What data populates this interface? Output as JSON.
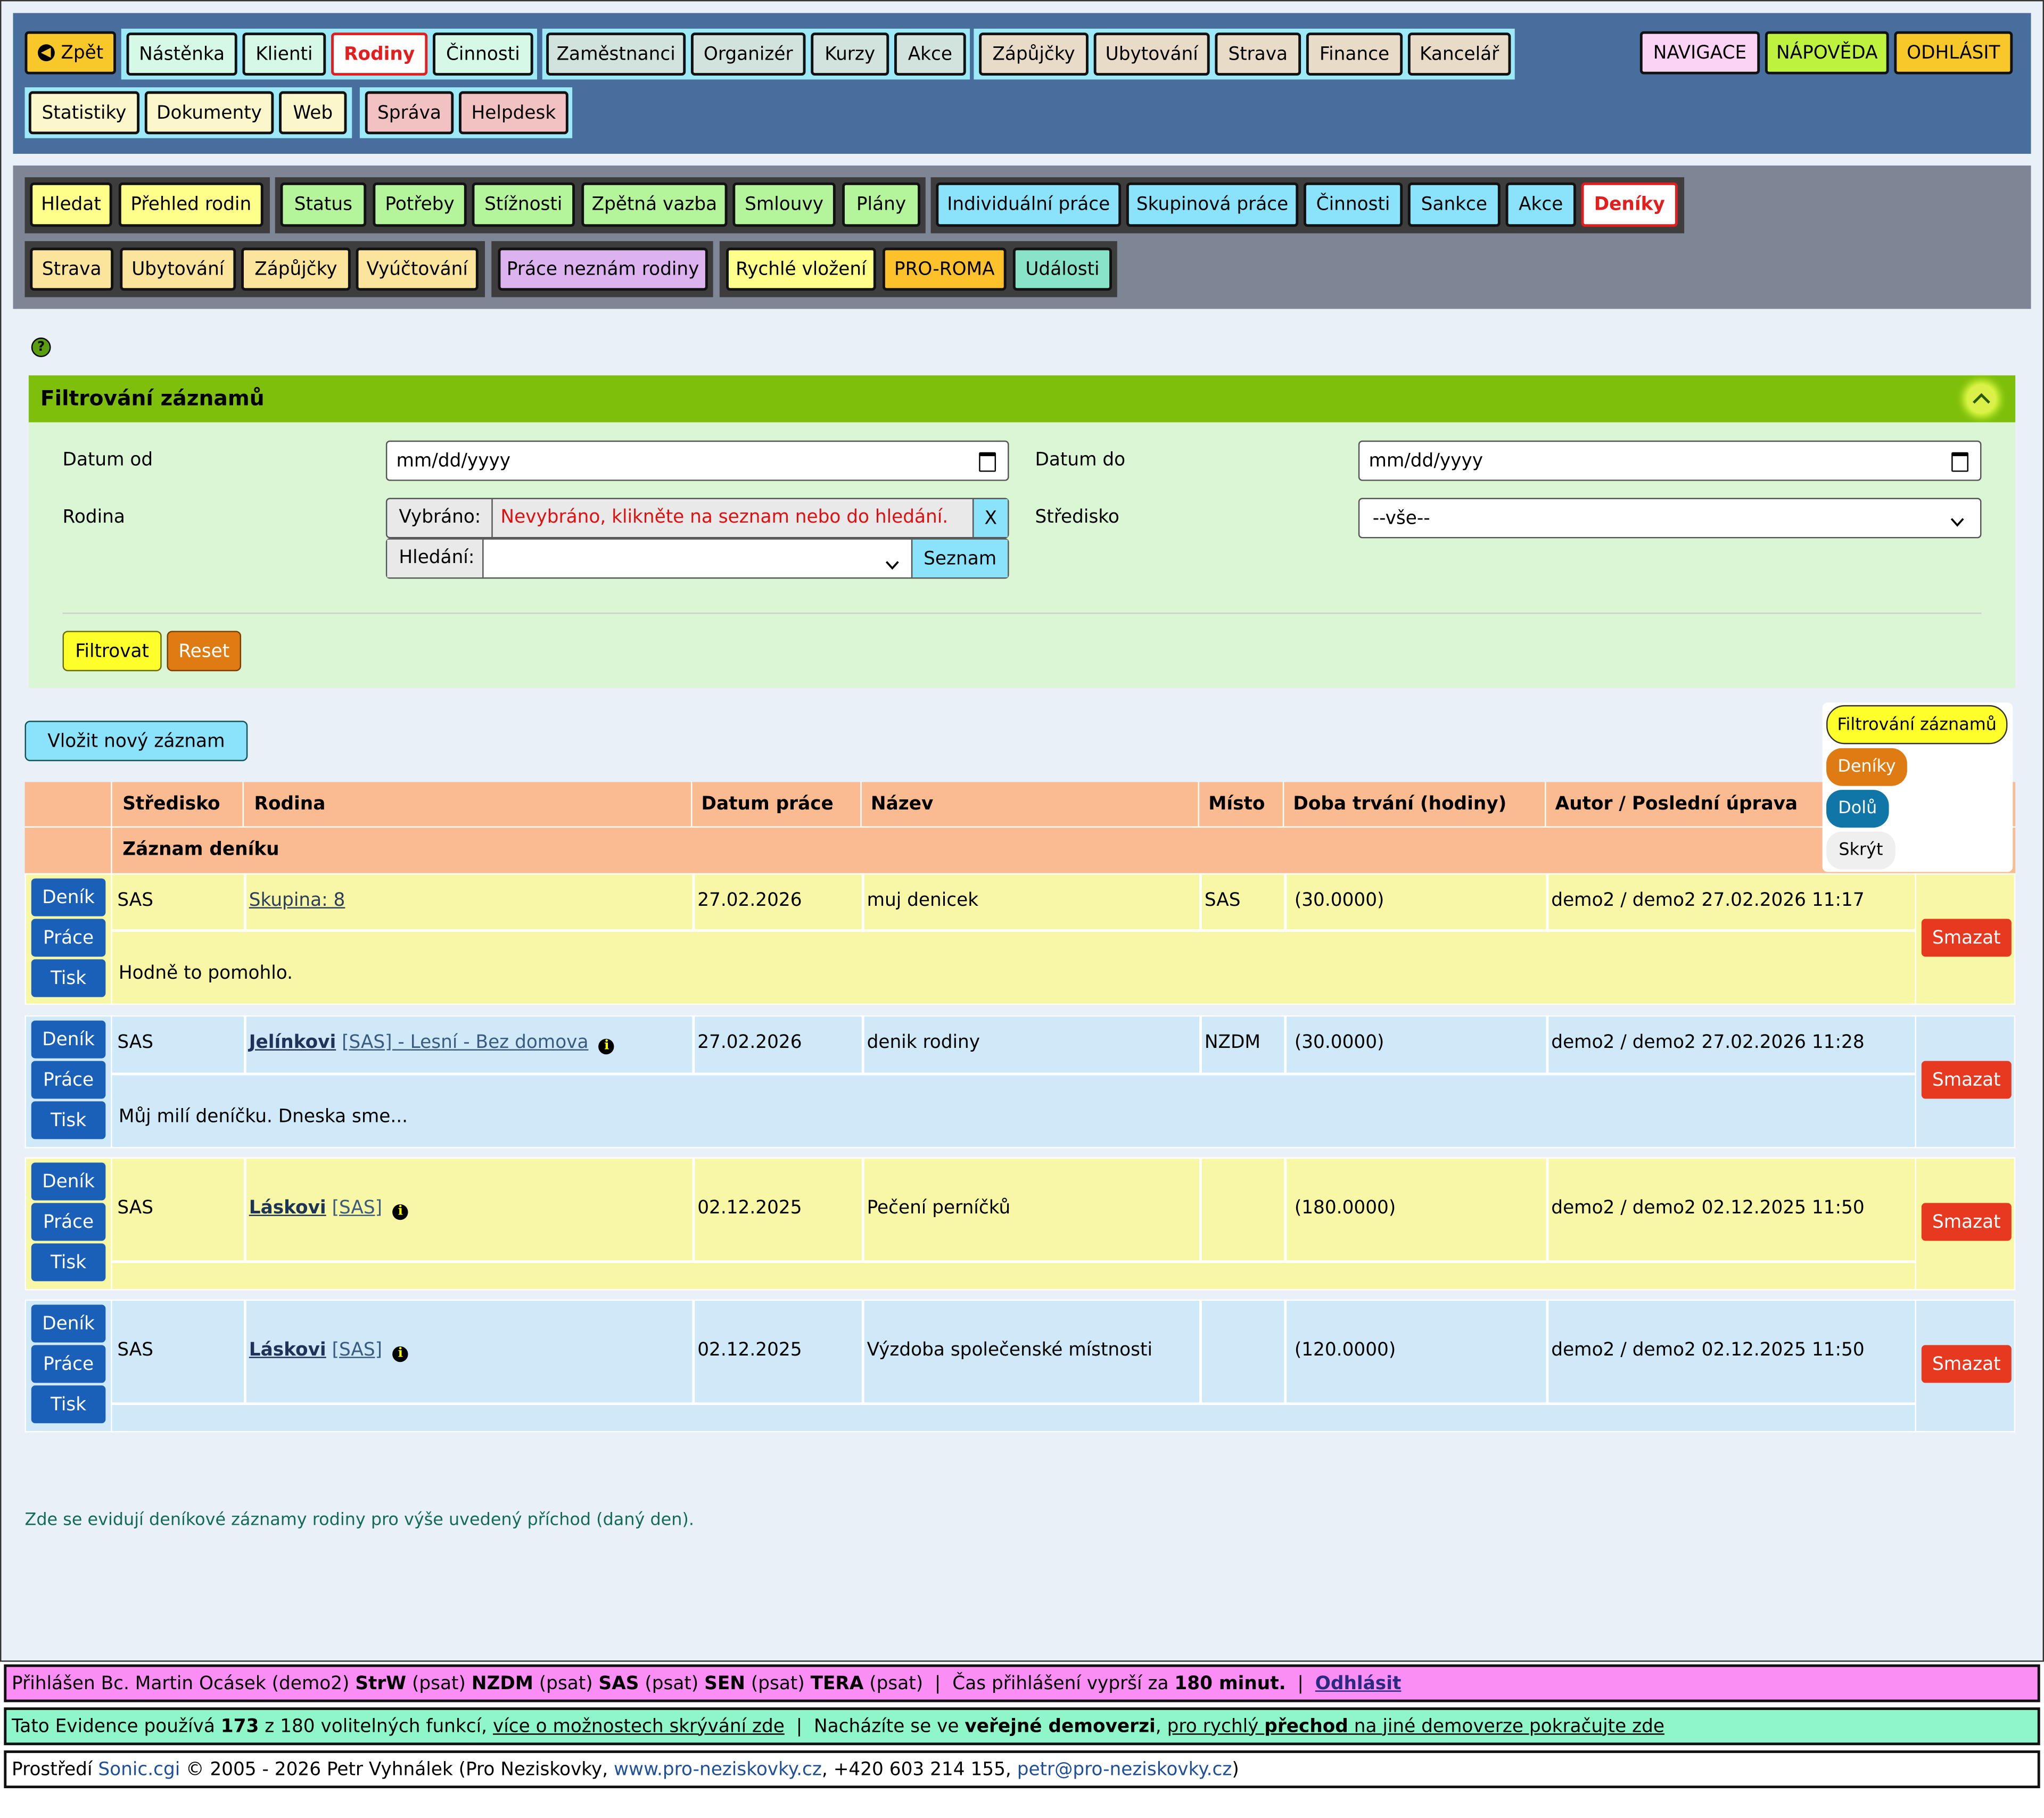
{
  "nav_main": {
    "back": "Zpět",
    "items": [
      "Nástěnka",
      "Klienti",
      "Rodiny",
      "Činnosti",
      "Zaměstnanci",
      "Organizér",
      "Kurzy",
      "Akce",
      "Zápůjčky",
      "Ubytování",
      "Strava",
      "Finance",
      "Kancelář"
    ],
    "row2": [
      "Statistiky",
      "Dokumenty",
      "Web",
      "Správa",
      "Helpdesk"
    ],
    "right": [
      "NAVIGACE",
      "NÁPOVĚDA",
      "ODHLÁSIT"
    ],
    "active": "Rodiny"
  },
  "nav_sub": {
    "row1": [
      "Hledat",
      "Přehled rodin",
      "Status",
      "Potřeby",
      "Stížnosti",
      "Zpětná vazba",
      "Smlouvy",
      "Plány",
      "Individuální práce",
      "Skupinová práce",
      "Činnosti",
      "Sankce",
      "Akce",
      "Deníky"
    ],
    "row2": [
      "Strava",
      "Ubytování",
      "Zápůjčky",
      "Vyúčtování",
      "Práce neznám rodiny",
      "Rychlé vložení",
      "PRO-ROMA",
      "Události"
    ],
    "active": "Deníky"
  },
  "filter": {
    "title": "Filtrování záznamů",
    "date_from_label": "Datum od",
    "date_from_value": "mm/dd/yyyy",
    "date_to_label": "Datum do",
    "date_to_value": "mm/dd/yyyy",
    "family_label": "Rodina",
    "selected_label": "Vybráno:",
    "selected_value": "Nevybráno, klikněte na seznam nebo do hledání.",
    "clear": "X",
    "search_label": "Hledání:",
    "list_button": "Seznam",
    "center_label": "Středisko",
    "center_value": "--vše--",
    "filter_button": "Filtrovat",
    "reset_button": "Reset"
  },
  "insert_button": "Vložit nový záznam",
  "floating_menu": [
    "Filtrování záznamů",
    "Deníky",
    "Dolů",
    "Skrýt"
  ],
  "table": {
    "headers": [
      "Středisko",
      "Rodina",
      "Datum práce",
      "Název",
      "Místo",
      "Doba trvání (hodiny)",
      "Autor / Poslední úprava"
    ],
    "subheader": "Záznam deníku",
    "row_buttons": [
      "Deník",
      "Práce",
      "Tisk"
    ],
    "delete": "Smazat",
    "rows": [
      {
        "center": "SAS",
        "family_name": "Skupina: 8",
        "family_tag": "",
        "date": "27.02.2026",
        "title": "muj denicek",
        "place": "SAS",
        "duration": "(30.0000)",
        "author": "demo2 / demo2 27.02.2026 11:17",
        "note": "Hodně to pomohlo."
      },
      {
        "center": "SAS",
        "family_name": "Jelínkovi",
        "family_tag": "[SAS] - Lesní - Bez domova",
        "date": "27.02.2026",
        "title": "denik rodiny",
        "place": "NZDM",
        "duration": "(30.0000)",
        "author": "demo2 / demo2 27.02.2026 11:28",
        "note": "Můj milí deníčku. Dneska sme..."
      },
      {
        "center": "SAS",
        "family_name": "Láskovi",
        "family_tag": "[SAS]",
        "date": "02.12.2025",
        "title": "Pečení perníčků",
        "place": "",
        "duration": "(180.0000)",
        "author": "demo2 / demo2 02.12.2025 11:50",
        "note": ""
      },
      {
        "center": "SAS",
        "family_name": "Láskovi",
        "family_tag": "[SAS]",
        "date": "02.12.2025",
        "title": "Výzdoba společenské místnosti",
        "place": "",
        "duration": "(120.0000)",
        "author": "demo2 / demo2 02.12.2025 11:50",
        "note": ""
      }
    ]
  },
  "bottom_note": "Zde se evidují deníkové záznamy rodiny pro výše uvedený příchod (daný den).",
  "footer": {
    "login": {
      "p1": "Přihlášen Bc. Martin Ocásek (demo2) ",
      "strw": "StrW",
      "p2": " (psat) ",
      "nzdm": "NZDM",
      "p3": " (psat) ",
      "sas": "SAS",
      "p4": " (psat) ",
      "sen": "SEN",
      "p5": " (psat) ",
      "tera": "TERA",
      "p6": " (psat)  |  Čas přihlášení vyprší za ",
      "minutes": "180 minut.",
      "p7": "  |  ",
      "logout": "Odhlásit"
    },
    "features": {
      "p1": "Tato Evidence používá ",
      "count": "173",
      "p2": " z 180 volitelných funkcí, ",
      "link1": "více o možnostech skrývání zde",
      "p3": "  |  Nacházíte se ve ",
      "bold": "veřejné demoverzi",
      "p4": ", ",
      "link2a": "pro rychlý ",
      "link2b": "přechod",
      "link2c": " na jiné demoverze pokračujte zde"
    },
    "copyright": {
      "p1": "Prostředí ",
      "sonic": "Sonic.cgi",
      "p2": " © 2005 - 2026 Petr Vyhnálek (Pro Neziskovky, ",
      "web": "www.pro-neziskovky.cz",
      "p3": ", +420 603 214 155, ",
      "email": "petr@pro-neziskovky.cz",
      "p4": ")"
    }
  },
  "colors": {
    "filter_header": "#7dbf0a",
    "table_header": "#fbbb90",
    "row_yellow": "#f8f7a6",
    "row_blue": "#cfe9f8",
    "delete": "#e6391f",
    "blue_btn": "#1a5fb8"
  }
}
